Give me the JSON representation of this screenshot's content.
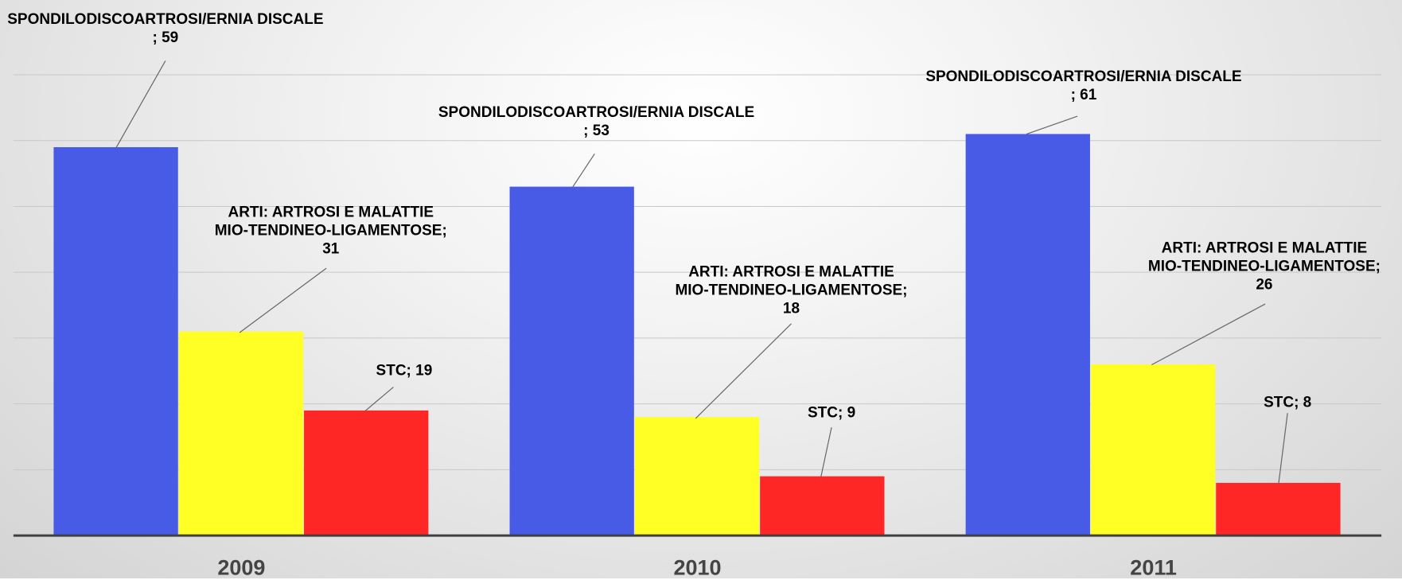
{
  "chart_data": {
    "type": "bar",
    "categories": [
      "2009",
      "2010",
      "2011"
    ],
    "series": [
      {
        "color": "#475be6",
        "values": [
          59,
          53,
          61
        ],
        "value_labels": [
          "SPONDILODISCOARTROSI/ERNIA DISCALE ; 59",
          "SPONDILODISCOARTROSI/ERNIA DISCALE ; 53",
          "SPONDILODISCOARTROSI/ERNIA DISCALE ; 61"
        ]
      },
      {
        "color": "#ffff26",
        "values": [
          31,
          18,
          26
        ],
        "value_labels": [
          "ARTI: ARTROSI E MALATTIE MIO-TENDINEO-LIGAMENTOSE; 31",
          "ARTI: ARTROSI E MALATTIE MIO-TENDINEO-LIGAMENTOSE; 18",
          "ARTI: ARTROSI E MALATTIE MIO-TENDINEO-LIGAMENTOSE; 26"
        ]
      },
      {
        "color": "#ff2626",
        "values": [
          19,
          9,
          8
        ],
        "value_labels": [
          "STC; 19",
          "STC; 9",
          "STC; 8"
        ]
      }
    ],
    "ylim": [
      0,
      80
    ],
    "yticks": [
      0,
      10,
      20,
      30,
      40,
      50,
      60,
      70
    ],
    "grid": true
  }
}
